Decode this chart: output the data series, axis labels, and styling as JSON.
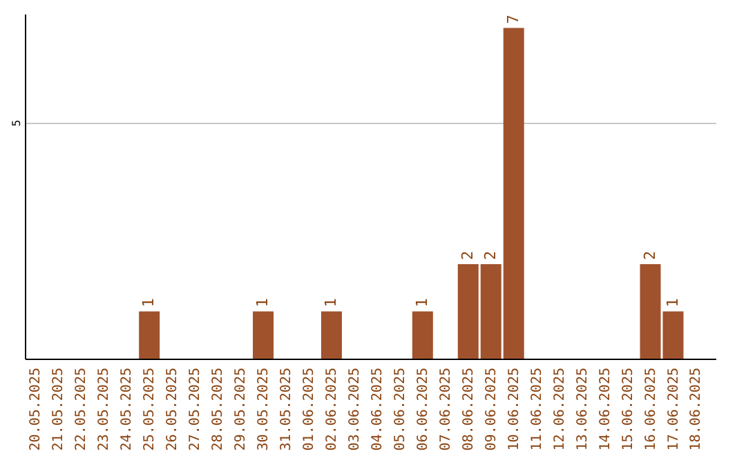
{
  "chart_data": {
    "type": "bar",
    "categories": [
      "20.05.2025",
      "21.05.2025",
      "22.05.2025",
      "23.05.2025",
      "24.05.2025",
      "25.05.2025",
      "26.05.2025",
      "27.05.2025",
      "28.05.2025",
      "29.05.2025",
      "30.05.2025",
      "31.05.2025",
      "01.06.2025",
      "02.06.2025",
      "03.06.2025",
      "04.06.2025",
      "05.06.2025",
      "06.06.2025",
      "07.06.2025",
      "08.06.2025",
      "09.06.2025",
      "10.06.2025",
      "11.06.2025",
      "12.06.2025",
      "13.06.2025",
      "14.06.2025",
      "15.06.2025",
      "16.06.2025",
      "17.06.2025",
      "18.06.2025"
    ],
    "values": [
      0,
      0,
      0,
      0,
      0,
      1,
      0,
      0,
      0,
      0,
      1,
      0,
      0,
      1,
      0,
      0,
      0,
      1,
      0,
      2,
      2,
      7,
      0,
      0,
      0,
      0,
      0,
      2,
      1,
      0
    ],
    "value_labels": [
      null,
      null,
      null,
      null,
      null,
      "1",
      null,
      null,
      null,
      null,
      "1",
      null,
      null,
      "1",
      null,
      null,
      null,
      "1",
      null,
      "2",
      "2",
      "7",
      null,
      null,
      null,
      null,
      null,
      "2",
      "1",
      null
    ],
    "color": "#a0522d",
    "ylim": [
      0,
      7.3
    ],
    "yticks": [
      5
    ],
    "grid": "y"
  }
}
